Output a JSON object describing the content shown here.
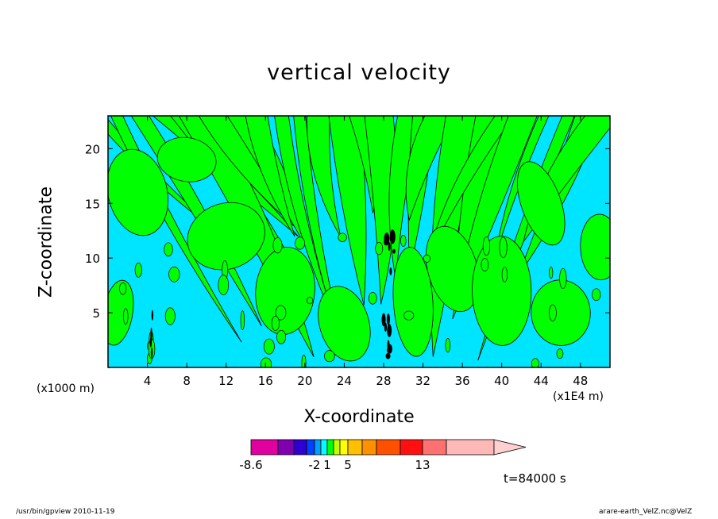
{
  "chart_data": {
    "type": "heatmap",
    "title": "vertical velocity",
    "xlabel": "X-coordinate",
    "ylabel": "Z-coordinate",
    "x_unit_left": "(x1000 m)",
    "x_unit_right": "(x1E4 m)",
    "xlim": [
      0,
      51
    ],
    "ylim": [
      0,
      23
    ],
    "x_ticks": [
      4,
      8,
      12,
      16,
      20,
      24,
      28,
      32,
      36,
      40,
      44,
      48
    ],
    "y_ticks": [
      5,
      10,
      15,
      20
    ],
    "fields": {
      "background_color": "#00e5ff",
      "positive_color": "#00ff00",
      "strong_color": "#000000"
    },
    "colorbar": {
      "colors": [
        "#e000a0",
        "#8000b0",
        "#3000d0",
        "#0040ff",
        "#00a0ff",
        "#00ffff",
        "#00ff00",
        "#c0ff00",
        "#ffff00",
        "#ffc000",
        "#ff9000",
        "#ff5000",
        "#ff1010",
        "#ff7070",
        "#ffb8b8"
      ],
      "labels": [
        {
          "text": "-8.6",
          "index": 0
        },
        {
          "text": "-2",
          "index": 4
        },
        {
          "text": "1",
          "index": 6
        },
        {
          "text": "5",
          "index": 9
        },
        {
          "text": "13",
          "index": 13
        }
      ]
    },
    "time_label": "t=84000 s"
  },
  "footer": {
    "left": "/usr/bin/gpview   2010-11-19",
    "right": "arare-earth_VelZ.nc@VelZ"
  }
}
